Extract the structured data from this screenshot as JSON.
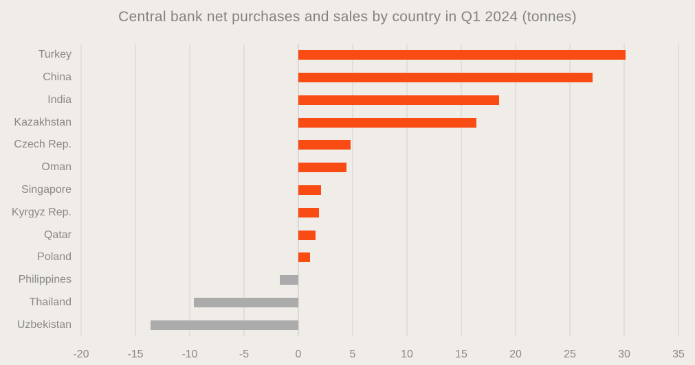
{
  "title": "Central bank net purchases and sales by country in Q1 2024 (tonnes)",
  "colors": {
    "background": "#F0EDE9",
    "positive_bar": "#F94B14",
    "negative_bar": "#ABABAB",
    "gridline": "#E2DFDB",
    "zero_gridline": "#DBD8D4",
    "title_text": "#848180",
    "label_text": "#8A8785",
    "tick_text": "#8A8785"
  },
  "chart_data": {
    "type": "bar",
    "orientation": "horizontal",
    "title": "Central bank net purchases and sales by country in Q1 2024 (tonnes)",
    "units": "tonnes",
    "categories": [
      "Turkey",
      "China",
      "India",
      "Kazakhstan",
      "Czech Rep.",
      "Oman",
      "Singapore",
      "Kyrgyz Rep.",
      "Qatar",
      "Poland",
      "Philippines",
      "Thailand",
      "Uzbekistan"
    ],
    "values": [
      30.1,
      27.1,
      18.5,
      16.4,
      4.8,
      4.4,
      2.1,
      1.9,
      1.6,
      1.1,
      -1.7,
      -9.6,
      -13.6
    ],
    "xlabel": "",
    "ylabel": "",
    "xlim": [
      -20,
      35
    ],
    "xticks": [
      -20,
      -15,
      -10,
      -5,
      0,
      5,
      10,
      15,
      20,
      25,
      30,
      35
    ],
    "grid": "vertical-only",
    "legend": "none",
    "bar_color_rule": "positive values orange, negative values gray"
  }
}
